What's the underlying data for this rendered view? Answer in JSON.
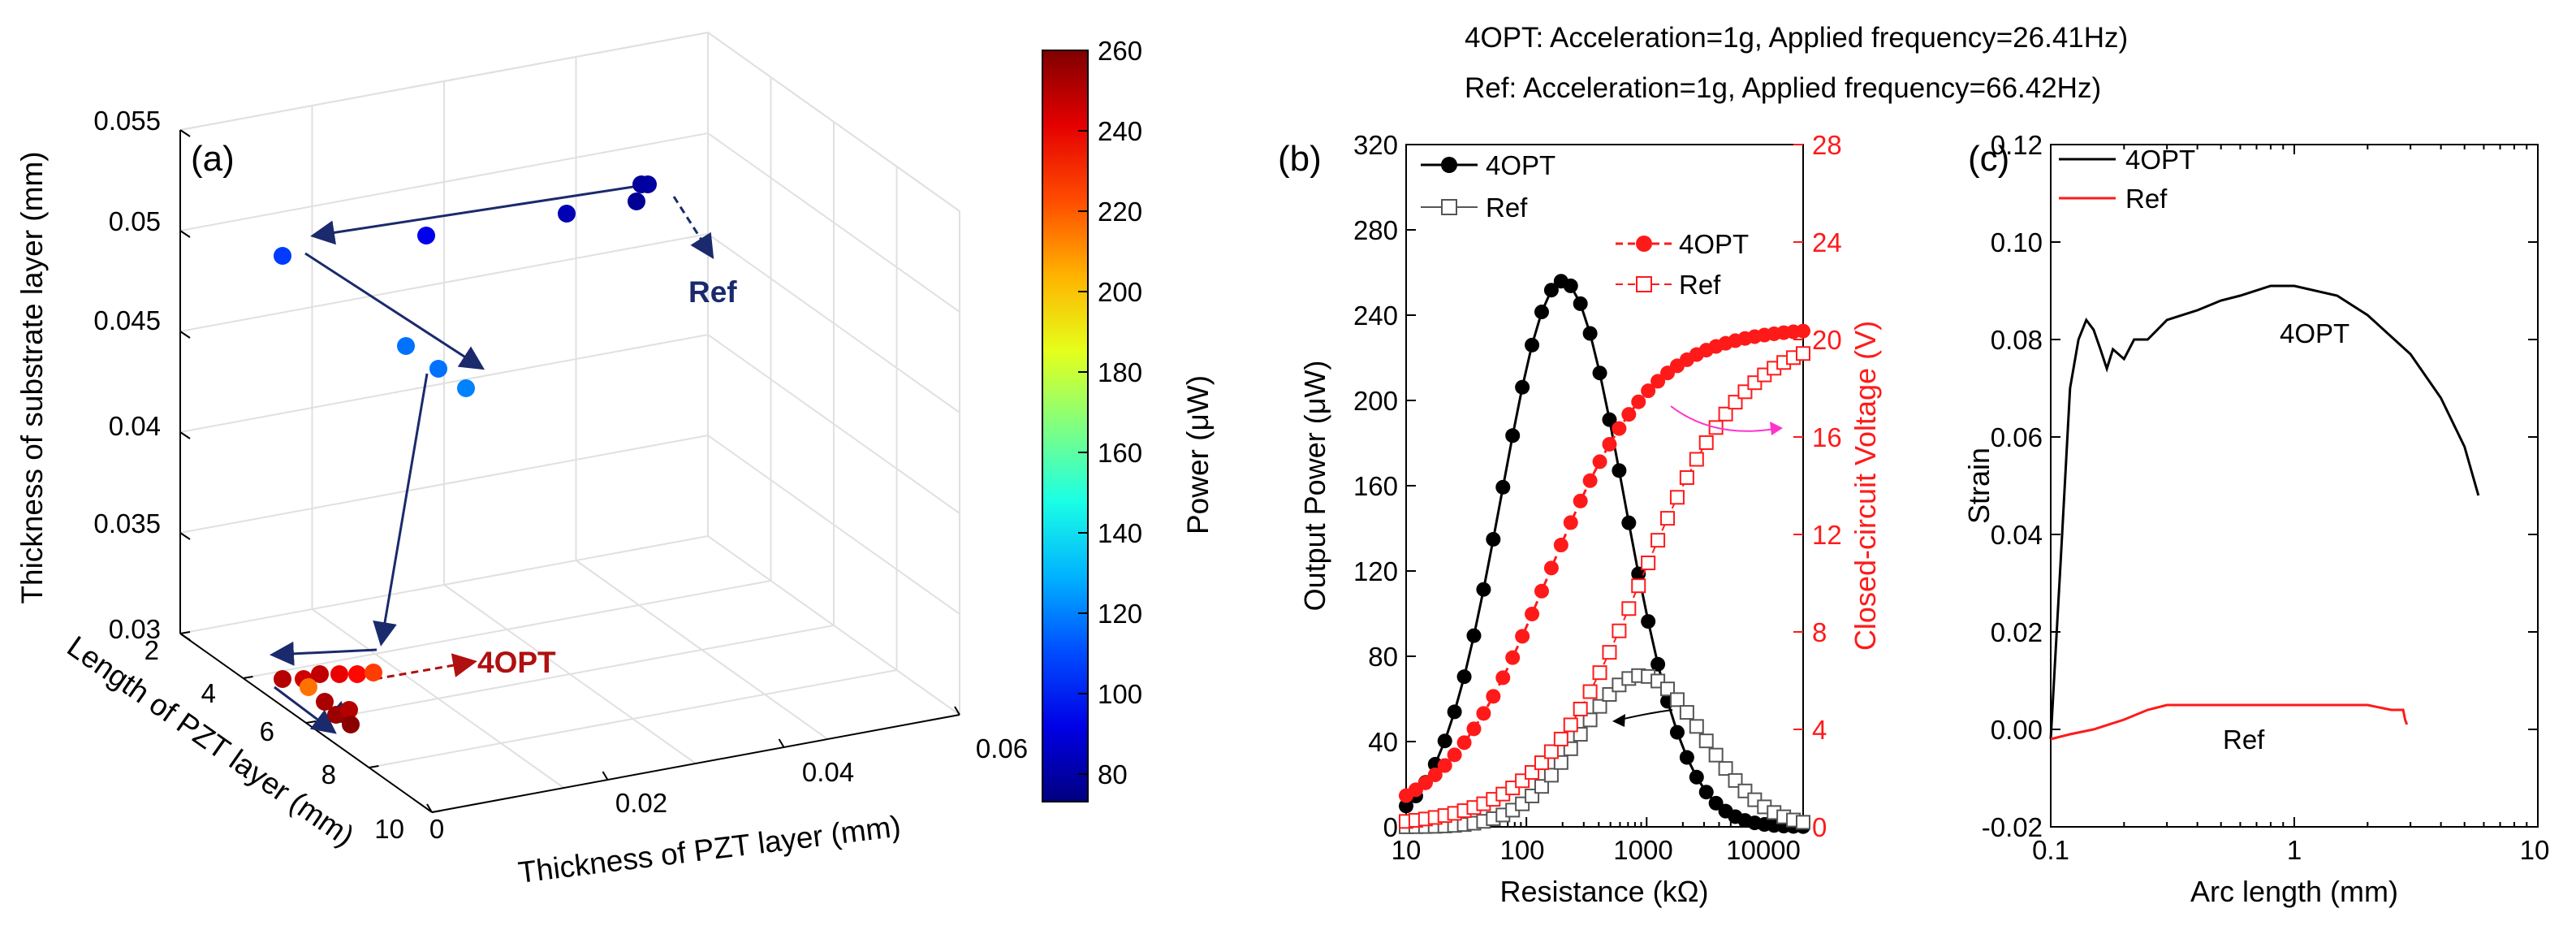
{
  "header": {
    "line1": "4OPT: Acceleration=1g, Applied frequency=26.41Hz)",
    "line2": "Ref: Acceleration=1g, Applied frequency=66.42Hz)"
  },
  "colors": {
    "black": "#000000",
    "red": "#ff1a1a",
    "navy": "#1a2a6c",
    "darkred": "#b01010",
    "gray": "#666666",
    "pink": "#ff33cc"
  },
  "chart_data": [
    {
      "panel": "a",
      "type": "scatter",
      "panel_label": "(a)",
      "xlabel": "Thickness of PZT layer (mm)",
      "ylabel": "Length of PZT layer (mm)",
      "zlabel": "Thickness of substrate layer (mm)",
      "x_ticks": [
        "0",
        "0.02",
        "0.04",
        "0.06"
      ],
      "y_ticks": [
        "2",
        "4",
        "6",
        "8",
        "10"
      ],
      "z_ticks": [
        "0.03",
        "0.035",
        "0.04",
        "0.045",
        "0.05",
        "0.055"
      ],
      "colorbar": {
        "label": "Power (μW)",
        "ticks": [
          "260",
          "240",
          "220",
          "200",
          "180",
          "160",
          "140",
          "120",
          "100",
          "80"
        ],
        "range": [
          70,
          260
        ],
        "colormap": "jet"
      },
      "annotations": {
        "ref": "Ref",
        "opt": "4OPT"
      },
      "points": [
        {
          "power": 75
        },
        {
          "power": 76
        },
        {
          "power": 74
        },
        {
          "power": 80
        },
        {
          "power": 90
        },
        {
          "power": 105
        },
        {
          "power": 115
        },
        {
          "power": 115
        },
        {
          "power": 118
        },
        {
          "power": 250
        },
        {
          "power": 245
        },
        {
          "power": 248
        },
        {
          "power": 240
        },
        {
          "power": 235
        },
        {
          "power": 225
        },
        {
          "power": 215
        },
        {
          "power": 252
        },
        {
          "power": 255
        },
        {
          "power": 250
        },
        {
          "power": 258
        }
      ]
    },
    {
      "panel": "b",
      "type": "line",
      "panel_label": "(b)",
      "xlabel": "Resistance (kΩ)",
      "ylabel": "Output Power (μW)",
      "ylabel_right": "Closed-circuit Voltage (V)",
      "x_scale": "log",
      "xlim": [
        10,
        20000
      ],
      "ylim": [
        0,
        320
      ],
      "ylim_right": [
        0,
        28
      ],
      "x_ticks": [
        "10",
        "100",
        "1000",
        "10000"
      ],
      "y_ticks": [
        "0",
        "40",
        "80",
        "120",
        "160",
        "200",
        "240",
        "280",
        "320"
      ],
      "y_ticks_right": [
        "0",
        "4",
        "8",
        "12",
        "16",
        "20",
        "24",
        "28"
      ],
      "legend_power": [
        "4OPT",
        "Ref"
      ],
      "legend_voltage": [
        "4OPT",
        "Ref"
      ],
      "series": [
        {
          "name": "4OPT",
          "quantity": "power",
          "peak_x": 200,
          "peak_y": 256,
          "width": 0.72
        },
        {
          "name": "Ref",
          "quantity": "power",
          "peak_x": 900,
          "peak_y": 71,
          "width": 0.72
        },
        {
          "name": "4OPT",
          "quantity": "voltage",
          "x_half": 150,
          "v_max": 20.5
        },
        {
          "name": "Ref",
          "quantity": "voltage",
          "x_half": 900,
          "v_max": 20.3
        }
      ]
    },
    {
      "panel": "c",
      "type": "line",
      "panel_label": "(c)",
      "xlabel": "Arc length (mm)",
      "ylabel": "Strain",
      "x_scale": "log",
      "xlim": [
        0.1,
        10
      ],
      "ylim": [
        -0.02,
        0.12
      ],
      "x_ticks": [
        "0.1",
        "1",
        "10"
      ],
      "y_ticks": [
        "-0.02",
        "0.00",
        "0.02",
        "0.04",
        "0.06",
        "0.08",
        "0.10",
        "0.12"
      ],
      "legend": [
        "4OPT",
        "Ref"
      ],
      "annotations": {
        "opt": "4OPT",
        "ref": "Ref"
      },
      "series": [
        {
          "name": "4OPT",
          "x": [
            0.1,
            0.11,
            0.12,
            0.13,
            0.14,
            0.15,
            0.16,
            0.17,
            0.18,
            0.2,
            0.22,
            0.25,
            0.3,
            0.4,
            0.5,
            0.6,
            0.8,
            1.0,
            1.5,
            2.0,
            3.0,
            4.0,
            5.0,
            5.7
          ],
          "y": [
            -0.002,
            0.035,
            0.07,
            0.08,
            0.084,
            0.082,
            0.078,
            0.074,
            0.078,
            0.076,
            0.08,
            0.08,
            0.084,
            0.086,
            0.088,
            0.089,
            0.091,
            0.091,
            0.089,
            0.085,
            0.077,
            0.068,
            0.058,
            0.048
          ]
        },
        {
          "name": "Ref",
          "x": [
            0.1,
            0.12,
            0.15,
            0.2,
            0.25,
            0.3,
            0.4,
            0.5,
            0.7,
            1.0,
            1.5,
            2.0,
            2.5,
            2.8,
            2.85,
            2.9
          ],
          "y": [
            -0.002,
            -0.001,
            0.0,
            0.002,
            0.004,
            0.005,
            0.005,
            0.005,
            0.005,
            0.005,
            0.005,
            0.005,
            0.004,
            0.004,
            0.002,
            0.001
          ]
        }
      ]
    }
  ]
}
